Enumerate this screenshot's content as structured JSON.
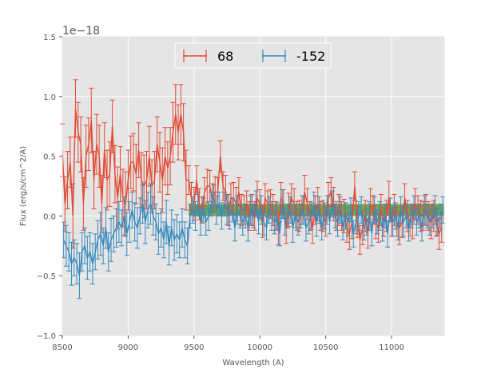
{
  "chart_data": {
    "type": "line",
    "xlabel": "Wavelength (A)",
    "ylabel": "Flux (erg/s/cm^2/A)",
    "offset_text": "1e−18",
    "xlim": [
      8500,
      11400
    ],
    "ylim": [
      -1.0,
      1.5
    ],
    "scale": 1e-18,
    "xticks": [
      8500,
      9000,
      9500,
      10000,
      10500,
      11000
    ],
    "xtick_labels": [
      "8500",
      "9000",
      "9500",
      "10000",
      "10500",
      "11000"
    ],
    "yticks": [
      -1.0,
      -0.5,
      0.0,
      0.5,
      1.0,
      1.5
    ],
    "ytick_labels": [
      "−1.0",
      "−0.5",
      "0.0",
      "0.5",
      "1.0",
      "1.5"
    ],
    "grid": true,
    "legend_position": "top-center",
    "colors": {
      "background": "#e5e5e5",
      "band": "#55a040"
    },
    "band": {
      "x_start": 9460,
      "x_end": 11400,
      "y_low": 0.0,
      "y_high": 0.1
    },
    "series": [
      {
        "name": "68",
        "color": "#e24a33",
        "x": [
          8500,
          8520,
          8540,
          8560,
          8580,
          8600,
          8620,
          8640,
          8660,
          8680,
          8700,
          8720,
          8740,
          8760,
          8780,
          8800,
          8820,
          8840,
          8860,
          8880,
          8900,
          8920,
          8940,
          8960,
          8980,
          9000,
          9020,
          9040,
          9060,
          9080,
          9100,
          9120,
          9140,
          9160,
          9180,
          9200,
          9220,
          9240,
          9260,
          9280,
          9300,
          9320,
          9340,
          9360,
          9380,
          9400,
          9420,
          9440,
          9460,
          9480,
          9500,
          9520,
          9540,
          9560,
          9580,
          9600,
          9620,
          9640,
          9660,
          9680,
          9700,
          9720,
          9740,
          9760,
          9780,
          9800,
          9820,
          9840,
          9860,
          9880,
          9900,
          9920,
          9940,
          9960,
          9980,
          10000,
          10020,
          10040,
          10060,
          10080,
          10100,
          10120,
          10140,
          10160,
          10180,
          10200,
          10220,
          10240,
          10260,
          10280,
          10300,
          10320,
          10340,
          10360,
          10380,
          10400,
          10420,
          10440,
          10460,
          10480,
          10500,
          10520,
          10540,
          10560,
          10580,
          10600,
          10620,
          10640,
          10660,
          10680,
          10700,
          10720,
          10740,
          10760,
          10780,
          10800,
          10820,
          10840,
          10860,
          10880,
          10900,
          10920,
          10940,
          10960,
          10980,
          11000,
          11020,
          11040,
          11060,
          11080,
          11100,
          11120,
          11140,
          11160,
          11180,
          11200,
          11220,
          11240,
          11260,
          11280,
          11300,
          11320,
          11340,
          11360,
          11380
        ],
        "y": [
          0.55,
          0.1,
          0.3,
          0.45,
          0.0,
          0.9,
          0.7,
          0.6,
          0.1,
          0.5,
          0.6,
          0.8,
          0.3,
          0.6,
          0.5,
          0.1,
          0.55,
          0.3,
          0.35,
          0.75,
          0.35,
          0.15,
          0.35,
          0.15,
          0.1,
          0.3,
          0.45,
          0.45,
          0.35,
          0.55,
          0.3,
          0.25,
          0.3,
          0.5,
          0.25,
          0.3,
          0.6,
          0.45,
          0.3,
          0.5,
          0.4,
          0.5,
          0.7,
          0.85,
          0.7,
          0.85,
          0.7,
          0.3,
          0.3,
          0.15,
          0.1,
          0.3,
          0.1,
          0.05,
          0.2,
          0.25,
          0.25,
          0.15,
          0.2,
          0.2,
          0.5,
          0.25,
          0.2,
          0.05,
          0.15,
          0.15,
          0.1,
          0.2,
          0.05,
          0.05,
          0.1,
          0.0,
          0.05,
          0.0,
          0.15,
          0.1,
          -0.05,
          0.15,
          0.1,
          0.1,
          0.05,
          0.0,
          -0.1,
          0.15,
          0.1,
          -0.1,
          0.05,
          0.15,
          0.1,
          0.0,
          0.0,
          0.05,
          0.2,
          0.1,
          0.0,
          -0.1,
          0.05,
          0.1,
          0.0,
          0.0,
          -0.05,
          0.15,
          0.2,
          0.1,
          0.0,
          0.05,
          0.0,
          0.0,
          -0.1,
          -0.15,
          -0.05,
          0.25,
          -0.05,
          -0.2,
          -0.1,
          0.0,
          -0.15,
          0.1,
          0.05,
          -0.05,
          -0.1,
          0.05,
          -0.05,
          0.0,
          0.15,
          -0.05,
          0.05,
          -0.05,
          -0.1,
          -0.05,
          0.15,
          0.0,
          -0.05,
          -0.05,
          0.1,
          0.05,
          0.0,
          0.0,
          0.05,
          0.0,
          -0.05,
          0.0,
          -0.05,
          -0.15,
          -0.1
        ],
        "err": [
          0.22,
          0.23,
          0.24,
          0.21,
          0.27,
          0.24,
          0.25,
          0.23,
          0.22,
          0.26,
          0.22,
          0.27,
          0.24,
          0.25,
          0.26,
          0.24,
          0.23,
          0.25,
          0.27,
          0.22,
          0.24,
          0.26,
          0.23,
          0.24,
          0.27,
          0.25,
          0.22,
          0.24,
          0.25,
          0.23,
          0.23,
          0.26,
          0.24,
          0.25,
          0.22,
          0.24,
          0.23,
          0.25,
          0.27,
          0.24,
          0.22,
          0.24,
          0.25,
          0.25,
          0.23,
          0.25,
          0.24,
          0.25,
          0.12,
          0.13,
          0.14,
          0.12,
          0.13,
          0.11,
          0.12,
          0.14,
          0.13,
          0.12,
          0.13,
          0.12,
          0.13,
          0.12,
          0.14,
          0.13,
          0.12,
          0.13,
          0.14,
          0.12,
          0.13,
          0.12,
          0.11,
          0.12,
          0.13,
          0.12,
          0.14,
          0.12,
          0.13,
          0.12,
          0.11,
          0.12,
          0.13,
          0.12,
          0.14,
          0.13,
          0.12,
          0.13,
          0.14,
          0.12,
          0.13,
          0.12,
          0.13,
          0.12,
          0.14,
          0.13,
          0.12,
          0.13,
          0.12,
          0.14,
          0.12,
          0.13,
          0.12,
          0.13,
          0.12,
          0.14,
          0.12,
          0.13,
          0.12,
          0.14,
          0.12,
          0.13,
          0.14,
          0.12,
          0.13,
          0.12,
          0.14,
          0.13,
          0.12,
          0.13,
          0.12,
          0.14,
          0.12,
          0.13,
          0.12,
          0.13,
          0.14,
          0.12,
          0.13,
          0.12,
          0.14,
          0.13,
          0.12,
          0.13,
          0.12,
          0.14,
          0.13,
          0.12,
          0.13,
          0.12,
          0.13,
          0.12,
          0.14,
          0.13,
          0.12,
          0.13,
          0.12
        ]
      },
      {
        "name": "-152",
        "color": "#348abd",
        "x": [
          8510,
          8530,
          8550,
          8570,
          8590,
          8610,
          8630,
          8650,
          8670,
          8690,
          8710,
          8730,
          8750,
          8770,
          8790,
          8810,
          8830,
          8850,
          8870,
          8890,
          8910,
          8930,
          8950,
          8970,
          8990,
          9010,
          9030,
          9050,
          9070,
          9090,
          9110,
          9130,
          9150,
          9170,
          9190,
          9210,
          9230,
          9250,
          9270,
          9290,
          9310,
          9330,
          9350,
          9370,
          9390,
          9410,
          9430,
          9450,
          9470,
          9490,
          9510,
          9530,
          9550,
          9570,
          9590,
          9610,
          9630,
          9650,
          9670,
          9690,
          9710,
          9730,
          9750,
          9770,
          9790,
          9810,
          9830,
          9850,
          9870,
          9890,
          9910,
          9930,
          9950,
          9970,
          9990,
          10010,
          10030,
          10050,
          10070,
          10090,
          10110,
          10130,
          10150,
          10170,
          10190,
          10210,
          10230,
          10250,
          10270,
          10290,
          10310,
          10330,
          10350,
          10370,
          10390,
          10410,
          10430,
          10450,
          10470,
          10490,
          10510,
          10530,
          10550,
          10570,
          10590,
          10610,
          10630,
          10650,
          10670,
          10690,
          10710,
          10730,
          10750,
          10770,
          10790,
          10810,
          10830,
          10850,
          10870,
          10890,
          10910,
          10930,
          10950,
          10970,
          10990,
          11010,
          11030,
          11050,
          11070,
          11090,
          11110,
          11130,
          11150,
          11170,
          11190,
          11210,
          11230,
          11250,
          11270,
          11290,
          11310,
          11330,
          11350,
          11370,
          11390
        ],
        "y": [
          -0.2,
          -0.25,
          -0.3,
          -0.4,
          -0.35,
          -0.4,
          -0.5,
          -0.3,
          -0.25,
          -0.35,
          -0.3,
          -0.4,
          -0.3,
          -0.2,
          -0.15,
          -0.25,
          -0.1,
          -0.3,
          -0.2,
          -0.15,
          -0.1,
          -0.05,
          -0.1,
          0.0,
          -0.15,
          -0.05,
          0.05,
          -0.05,
          -0.1,
          0.0,
          0.1,
          -0.05,
          0.05,
          0.1,
          0.0,
          -0.05,
          -0.15,
          -0.1,
          -0.2,
          -0.05,
          -0.25,
          -0.1,
          -0.2,
          -0.15,
          -0.2,
          -0.1,
          -0.2,
          -0.25,
          0.0,
          0.05,
          0.0,
          0.1,
          -0.05,
          0.05,
          -0.05,
          0.0,
          0.1,
          0.15,
          0.05,
          0.1,
          0.0,
          0.1,
          0.05,
          0.0,
          0.05,
          -0.1,
          0.05,
          0.0,
          -0.05,
          0.0,
          -0.1,
          0.05,
          0.0,
          0.1,
          -0.05,
          0.05,
          -0.05,
          -0.1,
          0.05,
          0.0,
          -0.05,
          0.0,
          -0.15,
          0.1,
          -0.05,
          0.0,
          0.05,
          -0.1,
          0.0,
          -0.05,
          0.0,
          0.05,
          -0.1,
          -0.05,
          0.0,
          0.1,
          -0.05,
          0.05,
          -0.1,
          0.0,
          0.05,
          -0.05,
          0.1,
          0.0,
          -0.05,
          0.05,
          -0.1,
          0.0,
          -0.05,
          0.05,
          -0.15,
          -0.05,
          0.0,
          0.05,
          -0.1,
          -0.05,
          0.0,
          -0.15,
          0.05,
          -0.05,
          0.0,
          -0.1,
          0.0,
          -0.15,
          0.05,
          -0.05,
          0.0,
          -0.1,
          0.05,
          -0.05,
          0.0,
          -0.1,
          0.0,
          0.05,
          -0.05,
          0.0,
          -0.1,
          0.05,
          0.0,
          -0.05,
          0.0,
          0.05,
          -0.05,
          0.0,
          0.05
        ],
        "err": [
          0.15,
          0.17,
          0.16,
          0.18,
          0.15,
          0.17,
          0.19,
          0.16,
          0.15,
          0.18,
          0.16,
          0.17,
          0.15,
          0.16,
          0.18,
          0.15,
          0.17,
          0.16,
          0.18,
          0.15,
          0.16,
          0.17,
          0.15,
          0.16,
          0.18,
          0.17,
          0.15,
          0.16,
          0.17,
          0.15,
          0.16,
          0.18,
          0.15,
          0.17,
          0.16,
          0.15,
          0.17,
          0.16,
          0.15,
          0.18,
          0.16,
          0.15,
          0.17,
          0.16,
          0.15,
          0.16,
          0.15,
          0.15,
          0.1,
          0.11,
          0.12,
          0.1,
          0.11,
          0.1,
          0.11,
          0.12,
          0.1,
          0.11,
          0.12,
          0.1,
          0.11,
          0.1,
          0.12,
          0.11,
          0.1,
          0.11,
          0.12,
          0.1,
          0.11,
          0.1,
          0.11,
          0.12,
          0.1,
          0.11,
          0.1,
          0.12,
          0.11,
          0.1,
          0.11,
          0.12,
          0.1,
          0.11,
          0.1,
          0.12,
          0.11,
          0.1,
          0.11,
          0.12,
          0.1,
          0.11,
          0.1,
          0.12,
          0.11,
          0.1,
          0.11,
          0.1,
          0.12,
          0.11,
          0.1,
          0.11,
          0.12,
          0.1,
          0.11,
          0.1,
          0.12,
          0.11,
          0.1,
          0.11,
          0.12,
          0.1,
          0.11,
          0.1,
          0.12,
          0.11,
          0.1,
          0.11,
          0.12,
          0.1,
          0.11,
          0.1,
          0.12,
          0.11,
          0.1,
          0.11,
          0.1,
          0.12,
          0.11,
          0.1,
          0.11,
          0.12,
          0.1,
          0.11,
          0.1,
          0.12,
          0.11,
          0.1,
          0.11,
          0.12,
          0.1,
          0.11,
          0.1,
          0.12,
          0.11,
          0.1,
          0.11
        ]
      }
    ]
  }
}
